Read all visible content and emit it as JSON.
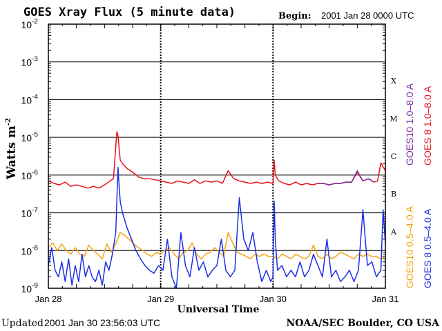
{
  "chart_data": {
    "type": "line",
    "title": "GOES Xray Flux (5 minute data)",
    "begin_label": "Begin:",
    "begin_value": "2001 Jan 28 0000 UTC",
    "ylabel": "Watts m",
    "ylabel_sup": "-2",
    "xlabel": "Universal Time",
    "y_scale": "log",
    "ylim": [
      1e-09,
      0.01
    ],
    "x_unit": "days since 2001 Jan 28 00:00 UTC",
    "xlim": [
      0,
      3
    ],
    "x_ticks": [
      {
        "x": 0,
        "label": "Jan 28"
      },
      {
        "x": 1,
        "label": "Jan 29"
      },
      {
        "x": 2,
        "label": "Jan 30"
      },
      {
        "x": 3,
        "label": "Jan 31"
      }
    ],
    "y_ticks": [
      {
        "exp": -9,
        "base": "10",
        "sup": "-9"
      },
      {
        "exp": -8,
        "base": "10",
        "sup": "-8"
      },
      {
        "exp": -7,
        "base": "10",
        "sup": "-7"
      },
      {
        "exp": -6,
        "base": "10",
        "sup": "-6"
      },
      {
        "exp": -5,
        "base": "10",
        "sup": "-5"
      },
      {
        "exp": -4,
        "base": "10",
        "sup": "-4"
      },
      {
        "exp": -3,
        "base": "10",
        "sup": "-3"
      },
      {
        "exp": -2,
        "base": "10",
        "sup": "-2"
      }
    ],
    "flare_classes": [
      {
        "label": "A",
        "exp": -7.5
      },
      {
        "label": "B",
        "exp": -6.5
      },
      {
        "label": "C",
        "exp": -5.5
      },
      {
        "label": "M",
        "exp": -4.5
      },
      {
        "label": "X",
        "exp": -3.5
      }
    ],
    "grid": "horizontal lines at each decade; dotted vertical lines at day boundaries",
    "legend": [
      {
        "name": "GOES10 1.0–8.0 A",
        "color": "#7b2fa0"
      },
      {
        "name": "GOES 8 1.0–8.0 A",
        "color": "#e8101a"
      },
      {
        "name": "GOES10 0.5–4.0 A",
        "color": "#f5a412"
      },
      {
        "name": "GOES 8 0.5–4.0 A",
        "color": "#1a2fe6"
      }
    ],
    "series": [
      {
        "name": "GOES 8 1.0–8.0 A",
        "color": "#e8101a",
        "x": [
          0.0,
          0.05,
          0.1,
          0.15,
          0.2,
          0.25,
          0.3,
          0.35,
          0.4,
          0.45,
          0.5,
          0.55,
          0.58,
          0.61,
          0.62,
          0.63,
          0.64,
          0.66,
          0.7,
          0.75,
          0.8,
          0.85,
          0.9,
          0.95,
          1.0,
          1.05,
          1.1,
          1.15,
          1.2,
          1.25,
          1.3,
          1.35,
          1.4,
          1.45,
          1.5,
          1.55,
          1.6,
          1.65,
          1.7,
          1.75,
          1.8,
          1.85,
          1.9,
          1.95,
          2.0,
          2.01,
          2.02,
          2.05,
          2.1,
          2.15,
          2.2,
          2.25,
          2.3,
          2.35,
          2.4,
          2.45,
          2.5,
          2.55,
          2.6,
          2.65,
          2.7,
          2.75,
          2.8,
          2.85,
          2.9,
          2.93,
          2.96,
          3.0
        ],
        "y": [
          7e-07,
          6e-07,
          5.5e-07,
          6.5e-07,
          5e-07,
          5.5e-07,
          5e-07,
          4.5e-07,
          5e-07,
          4.5e-07,
          5.5e-07,
          7e-07,
          8e-07,
          1.4e-05,
          1.1e-05,
          5e-06,
          2.5e-06,
          2e-06,
          1.5e-06,
          1.2e-06,
          9e-07,
          8e-07,
          8e-07,
          7.5e-07,
          7e-07,
          6.5e-07,
          6e-07,
          7e-07,
          6.5e-07,
          6e-07,
          7.5e-07,
          6e-07,
          7e-07,
          6.5e-07,
          7e-07,
          6e-07,
          1.3e-06,
          8e-07,
          7e-07,
          6.5e-07,
          6e-07,
          6.5e-07,
          6e-07,
          6.5e-07,
          6e-07,
          2.5e-06,
          1e-06,
          7e-07,
          6e-07,
          5.5e-07,
          6.5e-07,
          5.5e-07,
          6e-07,
          5.5e-07,
          6e-07,
          6e-07,
          5.5e-07,
          6e-07,
          6e-07,
          6.5e-07,
          6.5e-07,
          1.2e-06,
          7e-07,
          8e-07,
          6.5e-07,
          7e-07,
          2.1e-06,
          1.3e-06
        ]
      },
      {
        "name": "GOES10 1.0–8.0 A",
        "color": "#7b2fa0",
        "x": [
          2.4,
          2.45,
          2.5,
          2.55,
          2.6,
          2.65,
          2.7,
          2.75,
          2.8,
          2.85,
          2.9
        ],
        "y": [
          6e-07,
          6e-07,
          5.5e-07,
          6e-07,
          6e-07,
          6.5e-07,
          6.5e-07,
          1.3e-06,
          7e-07,
          8e-07,
          6.5e-07
        ]
      },
      {
        "name": "GOES10 0.5–4.0 A",
        "color": "#f5a412",
        "x": [
          0.0,
          0.04,
          0.08,
          0.12,
          0.16,
          0.2,
          0.24,
          0.28,
          0.32,
          0.36,
          0.4,
          0.44,
          0.48,
          0.52,
          0.56,
          0.6,
          0.64,
          0.68,
          0.72,
          0.76,
          0.8,
          0.84,
          0.88,
          0.92,
          0.96,
          1.0,
          1.04,
          1.08,
          1.12,
          1.16,
          1.2,
          1.24,
          1.28,
          1.32,
          1.36,
          1.4,
          1.44,
          1.48,
          1.52,
          1.56,
          1.6,
          1.64,
          1.68,
          1.72,
          1.76,
          1.8,
          1.84,
          1.88,
          1.92,
          1.96,
          2.0,
          2.04,
          2.08,
          2.12,
          2.16,
          2.2,
          2.24,
          2.28,
          2.32,
          2.36,
          2.4,
          2.44,
          2.48,
          2.52,
          2.56,
          2.6,
          2.64,
          2.68,
          2.72,
          2.76,
          2.8,
          2.84,
          2.88,
          2.92,
          2.96,
          3.0
        ],
        "y": [
          1.2e-08,
          1.6e-08,
          1e-08,
          1.5e-08,
          1e-08,
          8e-09,
          1.2e-08,
          8e-09,
          7e-09,
          1.4e-08,
          1e-08,
          8e-09,
          6e-09,
          1.5e-08,
          9e-09,
          1.5e-08,
          3e-08,
          2.5e-08,
          2e-08,
          1.5e-08,
          1.2e-08,
          1e-08,
          8e-09,
          7e-09,
          9e-09,
          8e-09,
          1e-08,
          1.2e-08,
          8e-09,
          6e-09,
          9e-09,
          1e-08,
          1.6e-08,
          8e-09,
          6e-09,
          8e-09,
          9e-09,
          1.2e-08,
          9e-09,
          7e-09,
          3e-08,
          1.6e-08,
          9e-09,
          8e-09,
          7e-09,
          6e-09,
          8e-09,
          7e-09,
          8e-09,
          7e-09,
          7e-09,
          6e-09,
          8e-09,
          7e-09,
          6e-09,
          8e-09,
          7e-09,
          6e-09,
          7e-09,
          1.4e-08,
          7e-09,
          6e-09,
          8e-09,
          6e-09,
          7e-09,
          9e-09,
          8e-09,
          7e-09,
          6e-09,
          8e-09,
          7e-09,
          8e-09,
          7e-09,
          7e-09,
          6e-09,
          7e-09
        ]
      },
      {
        "name": "GOES 8 0.5–4.0 A",
        "color": "#1a2fe6",
        "x": [
          0.0,
          0.03,
          0.06,
          0.09,
          0.12,
          0.15,
          0.18,
          0.21,
          0.24,
          0.27,
          0.3,
          0.33,
          0.36,
          0.39,
          0.42,
          0.45,
          0.48,
          0.51,
          0.54,
          0.57,
          0.6,
          0.62,
          0.63,
          0.64,
          0.66,
          0.7,
          0.74,
          0.78,
          0.82,
          0.86,
          0.9,
          0.94,
          0.98,
          1.02,
          1.06,
          1.1,
          1.14,
          1.18,
          1.22,
          1.26,
          1.3,
          1.34,
          1.38,
          1.42,
          1.46,
          1.5,
          1.54,
          1.58,
          1.62,
          1.66,
          1.7,
          1.74,
          1.78,
          1.82,
          1.86,
          1.9,
          1.94,
          1.98,
          2.0,
          2.01,
          2.02,
          2.04,
          2.08,
          2.12,
          2.16,
          2.2,
          2.24,
          2.28,
          2.32,
          2.36,
          2.4,
          2.44,
          2.48,
          2.52,
          2.56,
          2.6,
          2.64,
          2.68,
          2.72,
          2.76,
          2.8,
          2.84,
          2.88,
          2.92,
          2.96,
          2.98,
          3.0
        ],
        "y": [
          4e-09,
          1.2e-08,
          3e-09,
          2e-09,
          5e-09,
          1.5e-09,
          6e-09,
          1.2e-09,
          4e-09,
          1.5e-09,
          8e-09,
          2e-09,
          4e-09,
          2e-09,
          1.5e-09,
          3e-09,
          1.2e-09,
          5e-09,
          3e-09,
          8e-09,
          3e-08,
          1.6e-06,
          5e-07,
          2e-07,
          1e-07,
          4e-08,
          2e-08,
          1e-08,
          6e-09,
          4e-09,
          3e-09,
          2.5e-09,
          4e-09,
          3e-09,
          2e-08,
          2e-09,
          1e-09,
          3e-08,
          4e-09,
          2e-09,
          1.2e-08,
          3e-09,
          5e-09,
          2e-09,
          3e-09,
          4e-09,
          2e-08,
          3e-09,
          2e-09,
          3e-09,
          2.5e-07,
          2e-08,
          1e-08,
          3e-08,
          5e-09,
          1.5e-09,
          3e-09,
          1.5e-09,
          2e-09,
          2e-07,
          2e-08,
          3e-09,
          4e-09,
          2e-09,
          3e-09,
          2e-09,
          5e-09,
          2e-09,
          3e-09,
          8e-09,
          4e-09,
          2e-09,
          2e-08,
          2e-09,
          3e-09,
          1.5e-09,
          2e-09,
          3e-09,
          1.5e-09,
          3e-09,
          1.2e-07,
          4e-09,
          5e-09,
          2e-09,
          3e-09,
          1.2e-07,
          1.5e-08
        ]
      }
    ]
  },
  "footer": {
    "updated_label": "Updated",
    "updated_value": "2001 Jan 30 23:56:03 UTC",
    "source": "NOAA/SEC Boulder, CO USA"
  }
}
